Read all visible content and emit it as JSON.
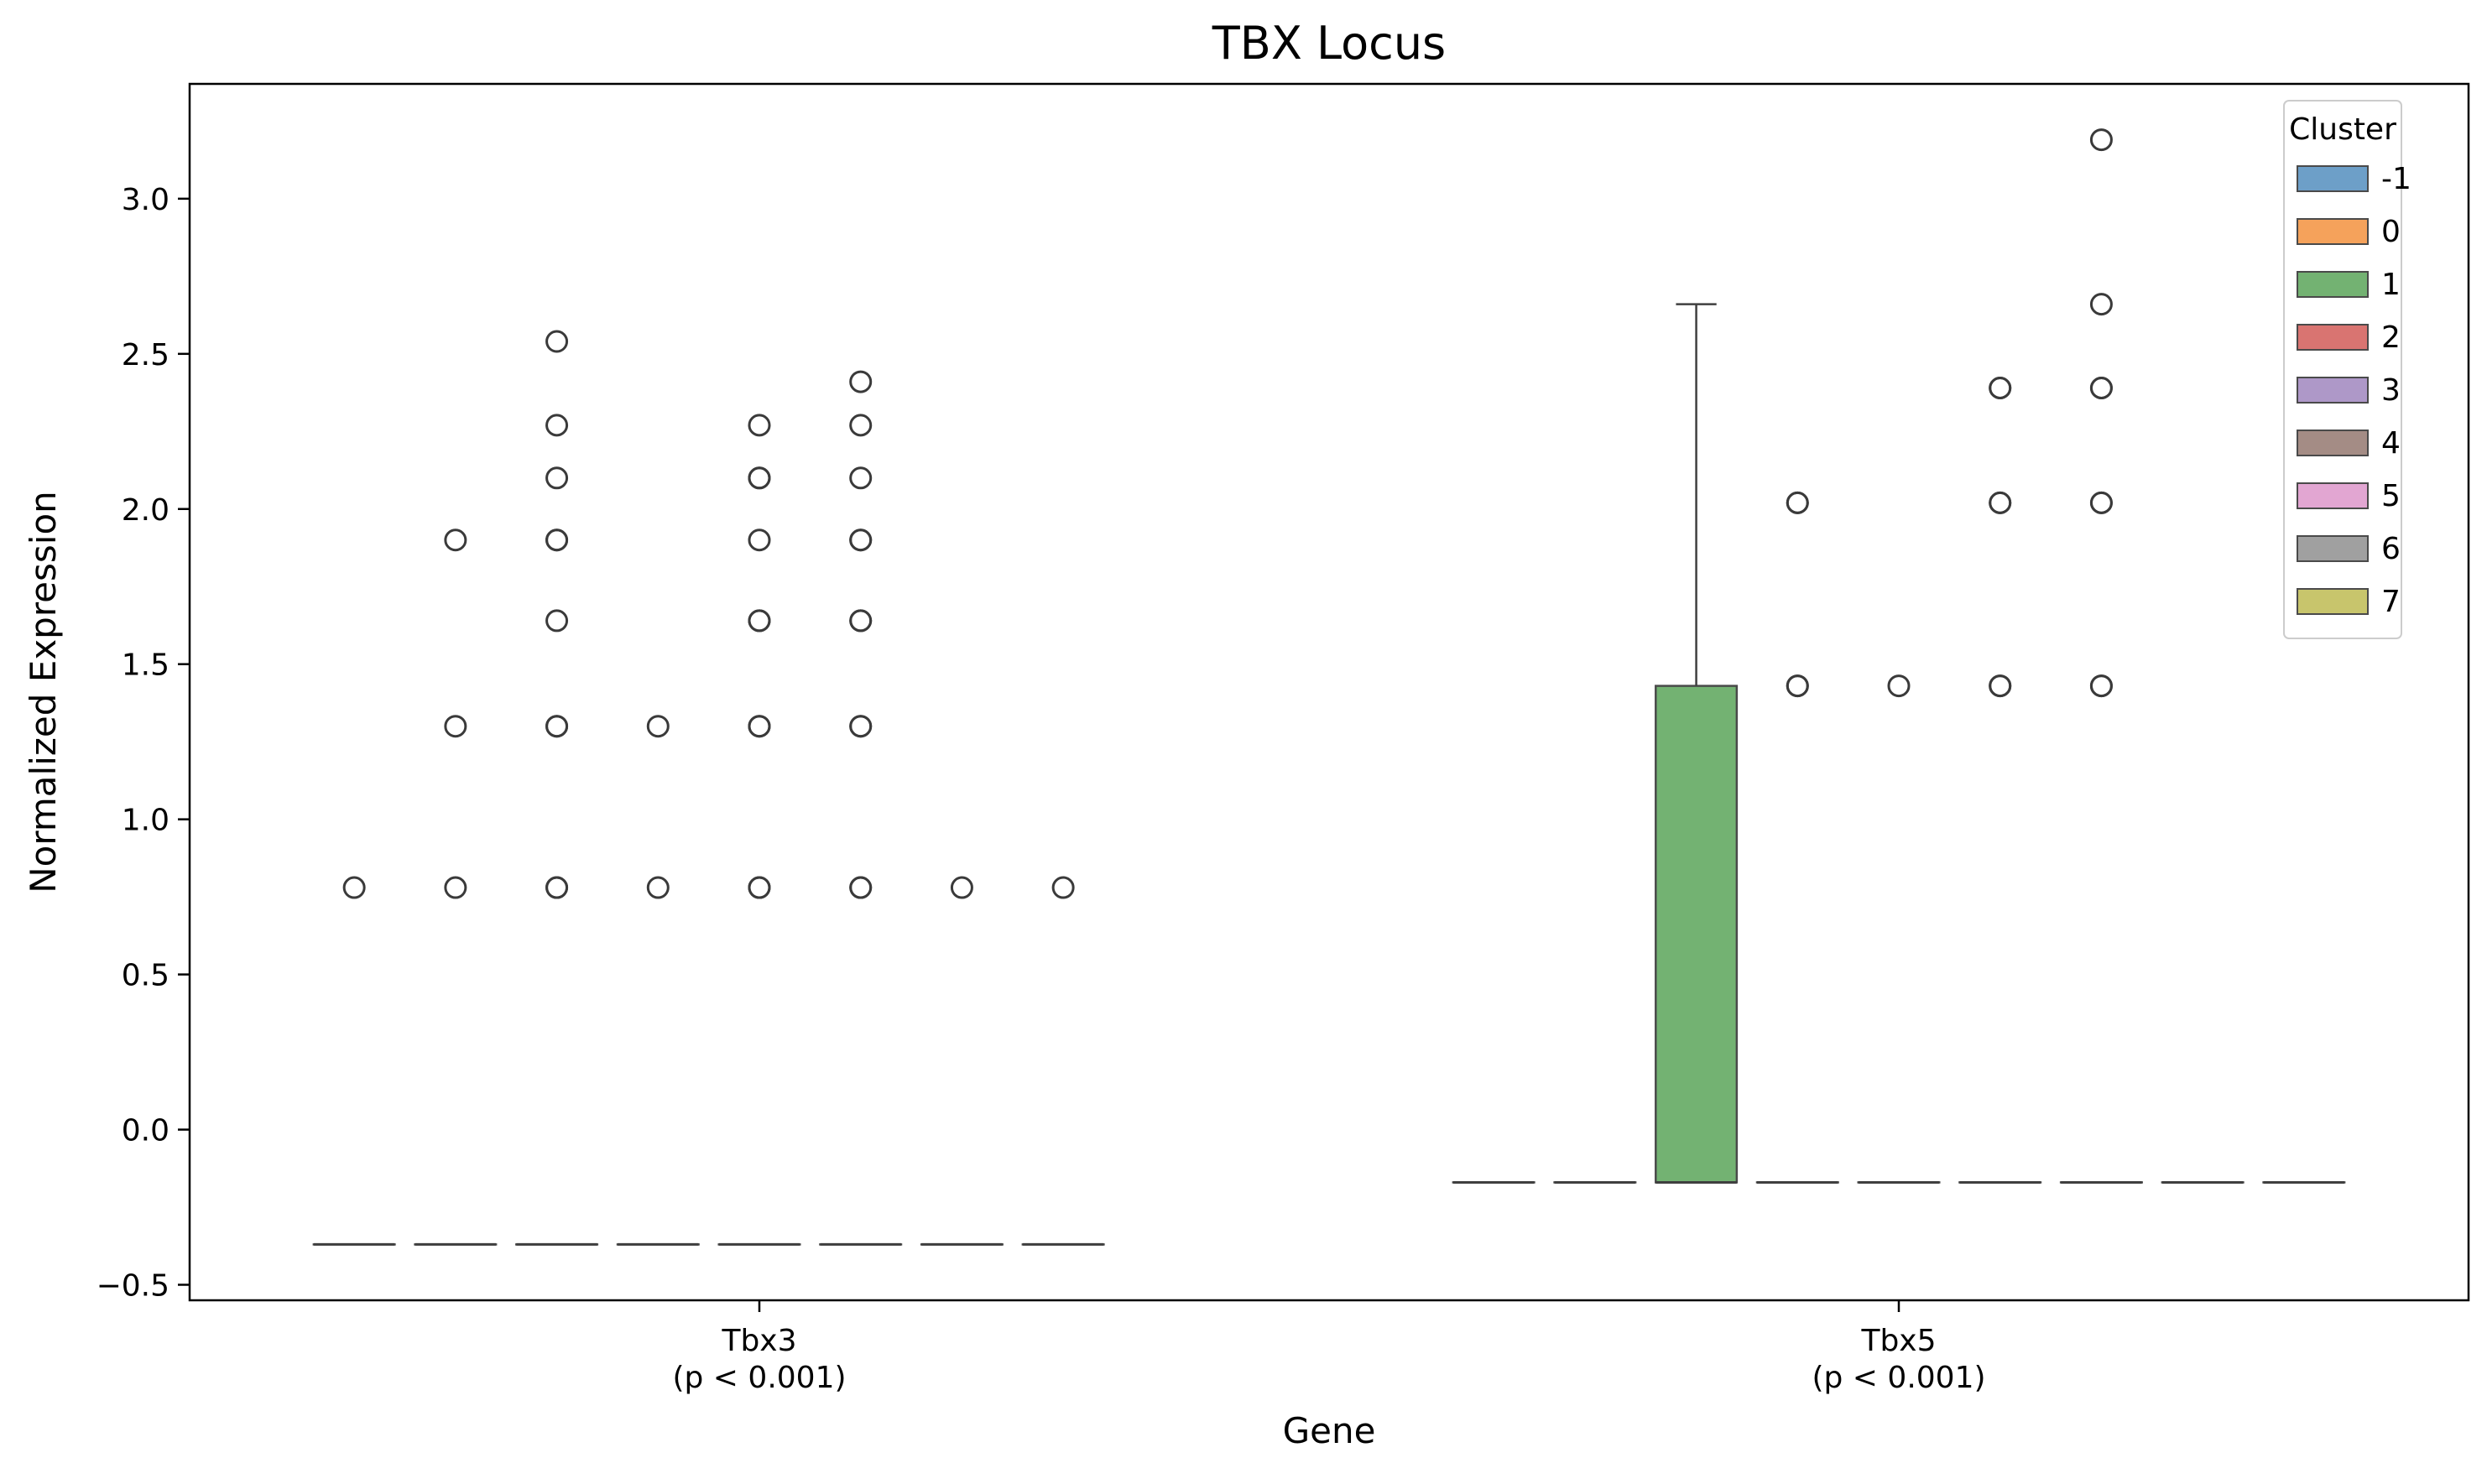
{
  "chart_data": {
    "type": "box",
    "title": "TBX Locus",
    "xlabel": "Gene",
    "ylabel": "Normalized Expression",
    "categories": [
      "Tbx3\n(p < 0.001)",
      "Tbx5\n(p < 0.001)"
    ],
    "ylim": [
      -0.55,
      3.37
    ],
    "yticks": [
      -0.5,
      0.0,
      0.5,
      1.0,
      1.5,
      2.0,
      2.5,
      3.0
    ],
    "ytick_labels": [
      "−0.5",
      "0.0",
      "0.5",
      "1.0",
      "1.5",
      "2.0",
      "2.5",
      "3.0"
    ],
    "grid": false,
    "legend": {
      "title": "Cluster",
      "placement": "top-right",
      "entries": [
        {
          "label": "-1",
          "color": "#6d9fc8"
        },
        {
          "label": "0",
          "color": "#f5a25b"
        },
        {
          "label": "1",
          "color": "#73b272"
        },
        {
          "label": "2",
          "color": "#d97471"
        },
        {
          "label": "3",
          "color": "#ae98c8"
        },
        {
          "label": "4",
          "color": "#a48c85"
        },
        {
          "label": "5",
          "color": "#e2a6d2"
        },
        {
          "label": "6",
          "color": "#a0a0a0"
        },
        {
          "label": "7",
          "color": "#c8c56c"
        }
      ]
    },
    "series": [
      {
        "category": 0,
        "boxes": [
          {
            "cluster": "-1",
            "color": "#6d9fc8",
            "q1": -0.37,
            "median": -0.37,
            "q3": -0.37,
            "whisker_low": -0.37,
            "whisker_high": -0.37,
            "outliers": [
              0.78
            ]
          },
          {
            "cluster": "0",
            "color": "#f5a25b",
            "q1": -0.37,
            "median": -0.37,
            "q3": -0.37,
            "whisker_low": -0.37,
            "whisker_high": -0.37,
            "outliers": [
              0.78,
              1.3,
              1.9
            ]
          },
          {
            "cluster": "1",
            "color": "#73b272",
            "q1": -0.37,
            "median": -0.37,
            "q3": -0.37,
            "whisker_low": -0.37,
            "whisker_high": -0.37,
            "outliers": [
              0.78,
              0.78,
              1.3,
              1.3,
              1.64,
              1.9,
              1.9,
              2.1,
              2.27,
              2.54
            ]
          },
          {
            "cluster": "2",
            "color": "#d97471",
            "q1": -0.37,
            "median": -0.37,
            "q3": -0.37,
            "whisker_low": -0.37,
            "whisker_high": -0.37,
            "outliers": [
              0.78,
              1.3
            ]
          },
          {
            "cluster": "3",
            "color": "#ae98c8",
            "q1": -0.37,
            "median": -0.37,
            "q3": -0.37,
            "whisker_low": -0.37,
            "whisker_high": -0.37,
            "outliers": [
              0.78,
              0.78,
              1.3,
              1.3,
              1.64,
              1.64,
              1.9,
              2.1,
              2.1,
              2.27
            ]
          },
          {
            "cluster": "4",
            "color": "#a48c85",
            "q1": -0.37,
            "median": -0.37,
            "q3": -0.37,
            "whisker_low": -0.37,
            "whisker_high": -0.37,
            "outliers": [
              0.78,
              0.78,
              1.3,
              1.3,
              1.64,
              1.64,
              1.9,
              1.9,
              2.1,
              2.27,
              2.41
            ]
          },
          {
            "cluster": "5",
            "color": "#e2a6d2",
            "q1": -0.37,
            "median": -0.37,
            "q3": -0.37,
            "whisker_low": -0.37,
            "whisker_high": -0.37,
            "outliers": [
              0.78
            ]
          },
          {
            "cluster": "6",
            "color": "#a0a0a0",
            "q1": -0.37,
            "median": -0.37,
            "q3": -0.37,
            "whisker_low": -0.37,
            "whisker_high": -0.37,
            "outliers": [
              0.78
            ]
          }
        ]
      },
      {
        "category": 1,
        "boxes": [
          {
            "cluster": "-1",
            "color": "#6d9fc8",
            "q1": -0.17,
            "median": -0.17,
            "q3": -0.17,
            "whisker_low": -0.17,
            "whisker_high": -0.17,
            "outliers": []
          },
          {
            "cluster": "0",
            "color": "#f5a25b",
            "q1": -0.17,
            "median": -0.17,
            "q3": -0.17,
            "whisker_low": -0.17,
            "whisker_high": -0.17,
            "outliers": []
          },
          {
            "cluster": "1",
            "color": "#73b272",
            "q1": -0.17,
            "median": -0.17,
            "q3": 1.43,
            "whisker_low": -0.17,
            "whisker_high": 2.66,
            "outliers": []
          },
          {
            "cluster": "2",
            "color": "#d97471",
            "q1": -0.17,
            "median": -0.17,
            "q3": -0.17,
            "whisker_low": -0.17,
            "whisker_high": -0.17,
            "outliers": [
              1.43,
              1.43,
              2.02,
              2.02
            ]
          },
          {
            "cluster": "3",
            "color": "#ae98c8",
            "q1": -0.17,
            "median": -0.17,
            "q3": -0.17,
            "whisker_low": -0.17,
            "whisker_high": -0.17,
            "outliers": [
              1.43
            ]
          },
          {
            "cluster": "4",
            "color": "#a48c85",
            "q1": -0.17,
            "median": -0.17,
            "q3": -0.17,
            "whisker_low": -0.17,
            "whisker_high": -0.17,
            "outliers": [
              1.43,
              1.43,
              2.02,
              2.02,
              2.39,
              2.39
            ]
          },
          {
            "cluster": "5",
            "color": "#e2a6d2",
            "q1": -0.17,
            "median": -0.17,
            "q3": -0.17,
            "whisker_low": -0.17,
            "whisker_high": -0.17,
            "outliers": [
              1.43,
              1.43,
              2.02,
              2.02,
              2.39,
              2.39,
              2.66,
              3.19
            ]
          },
          {
            "cluster": "6",
            "color": "#a0a0a0",
            "q1": -0.17,
            "median": -0.17,
            "q3": -0.17,
            "whisker_low": -0.17,
            "whisker_high": -0.17,
            "outliers": []
          },
          {
            "cluster": "7",
            "color": "#c8c56c",
            "q1": -0.17,
            "median": -0.17,
            "q3": -0.17,
            "whisker_low": -0.17,
            "whisker_high": -0.17,
            "outliers": []
          }
        ]
      }
    ]
  }
}
